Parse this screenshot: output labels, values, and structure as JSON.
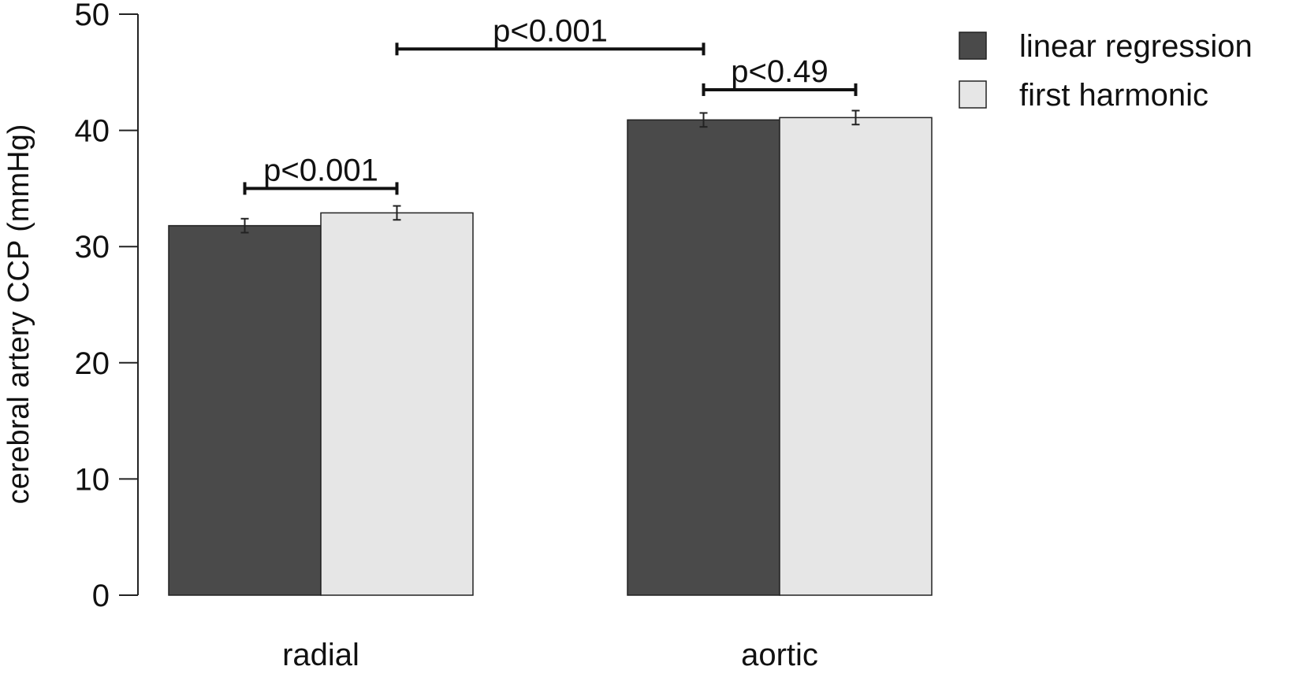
{
  "chart_data": {
    "type": "bar",
    "categories": [
      "radial",
      "aortic"
    ],
    "series": [
      {
        "name": "linear regression",
        "values": [
          31.8,
          40.9
        ],
        "error": [
          0.6,
          0.6
        ],
        "color": "#4a4a4a"
      },
      {
        "name": "first harmonic",
        "values": [
          32.9,
          41.1
        ],
        "error": [
          0.6,
          0.6
        ],
        "color": "#e6e6e6"
      }
    ],
    "title": "",
    "xlabel": "",
    "ylabel": "cerebral artery CCP (mmHg)",
    "ylim": [
      0,
      50
    ],
    "yticks": [
      "0",
      "10",
      "20",
      "30",
      "40",
      "50"
    ],
    "grid": false,
    "legend": "top-right",
    "significance": [
      {
        "label": "p<0.001",
        "from": {
          "category": 0,
          "series": 0
        },
        "to": {
          "category": 0,
          "series": 1
        },
        "y": 35
      },
      {
        "label": "p<0.49",
        "from": {
          "category": 1,
          "series": 0
        },
        "to": {
          "category": 1,
          "series": 1
        },
        "y": 43.5
      },
      {
        "label": "p<0.001",
        "from": {
          "category": 0,
          "series": 1
        },
        "to": {
          "category": 1,
          "series": 0
        },
        "y": 47
      }
    ]
  }
}
